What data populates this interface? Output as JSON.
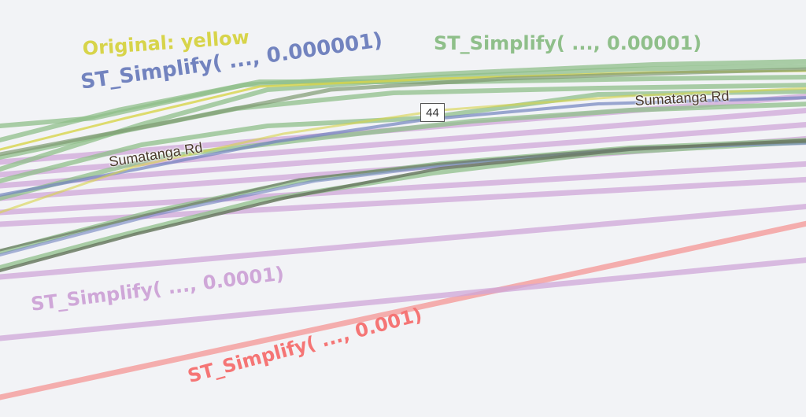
{
  "map": {
    "background": "#f2f3f6",
    "series": [
      {
        "key": "original",
        "color": "#d7d44a"
      },
      {
        "key": "simplify_0_000001",
        "color": "#7283bf"
      },
      {
        "key": "simplify_0_00001",
        "color": "#8fbf8a"
      },
      {
        "key": "simplify_0_0001",
        "color": "#cfa7d8"
      },
      {
        "key": "simplify_0_001",
        "color": "#f5a0a0"
      }
    ],
    "labels": {
      "original": "Original: yellow",
      "simplify_0_000001": "ST_Simplify( ..., 0.000001)",
      "simplify_0_00001": "ST_Simplify( ..., 0.00001)",
      "simplify_0_0001": "ST_Simplify( ..., 0.0001)",
      "simplify_0_001": "ST_Simplify( ..., 0.001)"
    },
    "road_labels": {
      "left": "Sumatanga Rd",
      "right": "Sumatanga Rd"
    },
    "route_shield": "44"
  }
}
